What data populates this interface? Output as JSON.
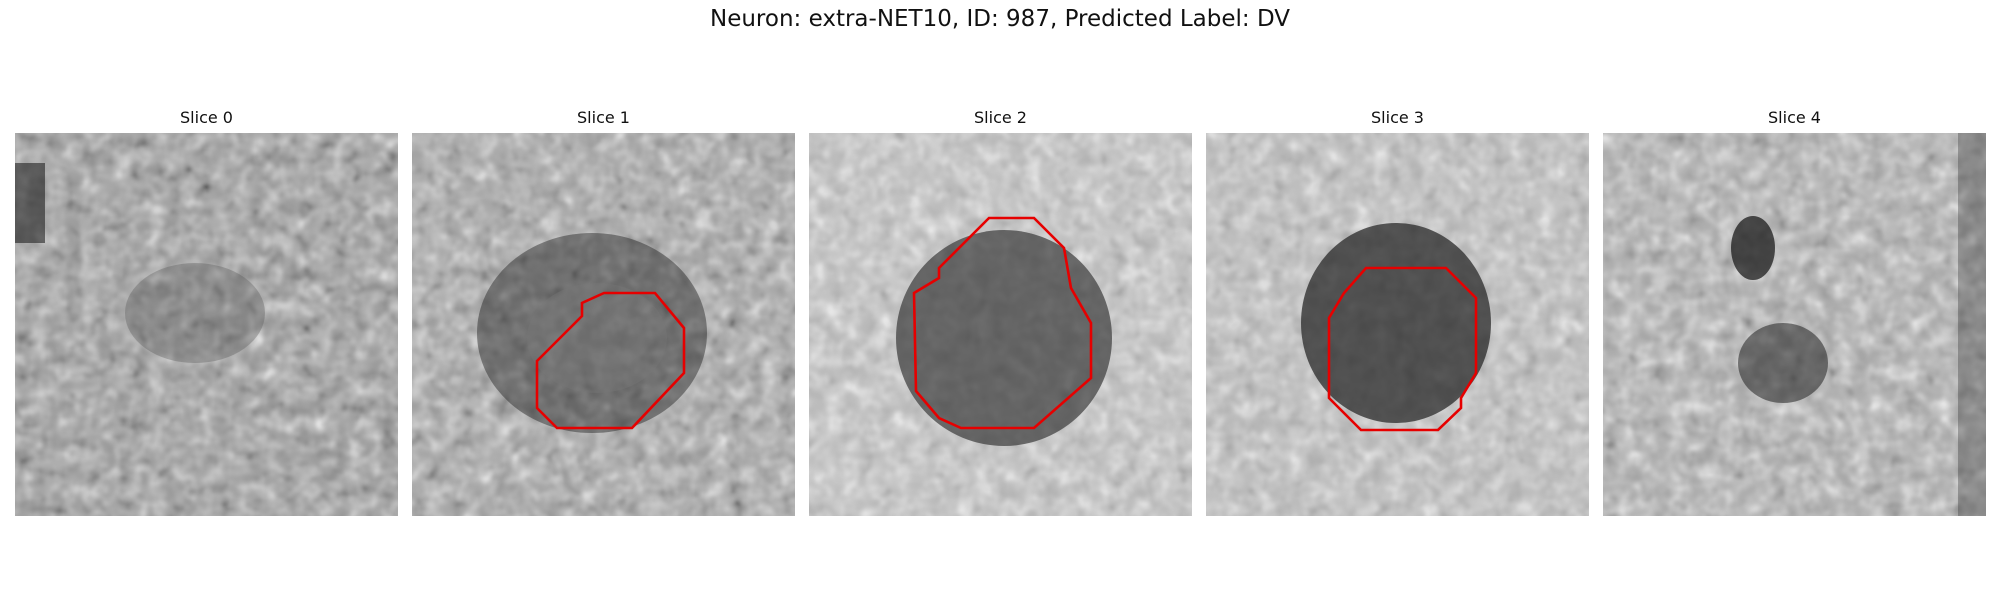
{
  "figure": {
    "title": "Neuron: extra-NET10, ID: 987, Predicted Label: DV"
  },
  "contour_color": "#e60000",
  "slices": [
    {
      "title": "Slice 0"
    },
    {
      "title": "Slice 1"
    },
    {
      "title": "Slice 2"
    },
    {
      "title": "Slice 3"
    },
    {
      "title": "Slice 4"
    }
  ]
}
